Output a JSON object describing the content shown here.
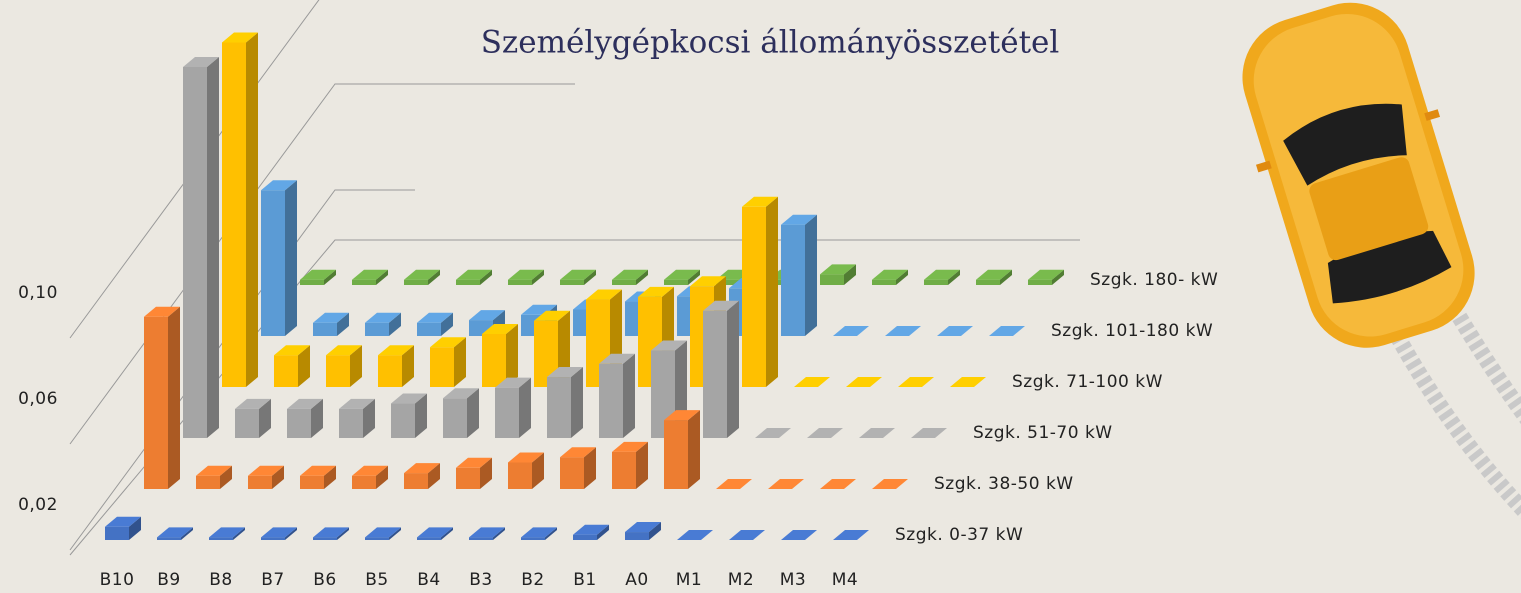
{
  "chart_data": {
    "type": "bar3d",
    "title": "Személygépkocsi állományösszetétel",
    "categories": [
      "B10",
      "B9",
      "B8",
      "B7",
      "B6",
      "B5",
      "B4",
      "B3",
      "B2",
      "B1",
      "A0",
      "M1",
      "M2",
      "M3",
      "M4"
    ],
    "series": [
      {
        "name": "Szgk. 0-37 kW",
        "color": "#4472c4",
        "values": [
          0.005,
          0.001,
          0.001,
          0.001,
          0.001,
          0.001,
          0.001,
          0.001,
          0.001,
          0.002,
          0.003,
          0,
          0,
          0,
          0
        ]
      },
      {
        "name": "Szgk. 38-50 kW",
        "color": "#ed7d31",
        "values": [
          0.065,
          0.005,
          0.005,
          0.005,
          0.005,
          0.006,
          0.008,
          0.01,
          0.012,
          0.014,
          0.026,
          0,
          0,
          0,
          0
        ]
      },
      {
        "name": "Szgk. 51-70 kW",
        "color": "#a5a5a5",
        "values": [
          0.14,
          0.011,
          0.011,
          0.011,
          0.013,
          0.015,
          0.019,
          0.023,
          0.028,
          0.033,
          0.048,
          0,
          0,
          0,
          0
        ]
      },
      {
        "name": "Szgk. 71-100 kW",
        "color": "#ffc000",
        "values": [
          0.13,
          0.012,
          0.012,
          0.012,
          0.015,
          0.02,
          0.025,
          0.033,
          0.034,
          0.038,
          0.068,
          0,
          0,
          0,
          0
        ]
      },
      {
        "name": "Szgk. 101-180 kW",
        "color": "#5b9bd5",
        "values": [
          0.055,
          0.005,
          0.005,
          0.005,
          0.006,
          0.008,
          0.01,
          0.013,
          0.015,
          0.018,
          0.042,
          0,
          0,
          0,
          0
        ]
      },
      {
        "name": "Szgk. 180- kW",
        "color": "#70ad47",
        "values": [
          0.002,
          0.002,
          0.002,
          0.002,
          0.002,
          0.002,
          0.002,
          0.002,
          0.002,
          0.002,
          0.004,
          0.002,
          0.002,
          0.002,
          0.002
        ]
      }
    ],
    "ylim": [
      0,
      0.2
    ],
    "yticks": [
      {
        "value": 0.02,
        "label": "0,02"
      },
      {
        "value": 0.06,
        "label": "0,06"
      },
      {
        "value": 0.1,
        "label": "0,10"
      }
    ],
    "grid": true
  }
}
